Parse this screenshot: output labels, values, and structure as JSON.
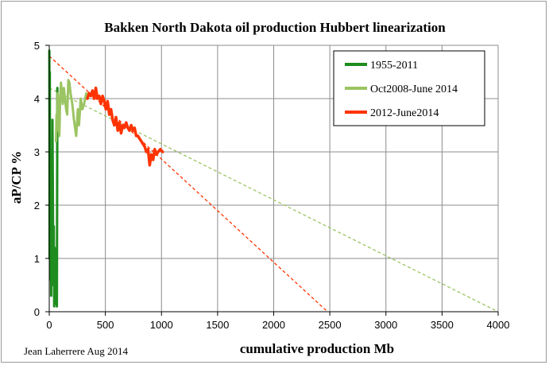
{
  "chart_data": {
    "type": "line",
    "title": "Bakken North Dakota oil production Hubbert linearization",
    "xlabel": "cumulative production Mb",
    "ylabel": "aP/CP %",
    "credit": "Jean Laherrere Aug 2014",
    "xlim": [
      0,
      4000
    ],
    "ylim": [
      0,
      5
    ],
    "x_ticks": [
      0,
      500,
      1000,
      1500,
      2000,
      2500,
      3000,
      3500,
      4000
    ],
    "y_ticks": [
      0,
      1,
      2,
      3,
      4,
      5
    ],
    "grid": true,
    "legend_position": "top-right",
    "series": [
      {
        "name": "1955-2011",
        "color": "#1e8c1e",
        "points": [
          [
            1,
            4.9
          ],
          [
            2,
            3.0
          ],
          [
            3,
            1.0
          ],
          [
            4,
            3.8
          ],
          [
            5,
            4.5
          ],
          [
            7,
            1.2
          ],
          [
            9,
            2.6
          ],
          [
            11,
            0.6
          ],
          [
            14,
            1.8
          ],
          [
            17,
            0.3
          ],
          [
            20,
            1.5
          ],
          [
            24,
            0.8
          ],
          [
            28,
            3.6
          ],
          [
            32,
            2.4
          ],
          [
            36,
            0.5
          ],
          [
            40,
            1.6
          ],
          [
            44,
            0.1
          ],
          [
            48,
            1.2
          ],
          [
            52,
            0.3
          ],
          [
            56,
            1.0
          ],
          [
            60,
            0.15
          ],
          [
            64,
            0.7
          ],
          [
            68,
            0.1
          ],
          [
            72,
            4.2
          ]
        ]
      },
      {
        "name": "Oct2008-June 2014",
        "color": "#9bc462",
        "points": [
          [
            60,
            3.2
          ],
          [
            65,
            3.7
          ],
          [
            70,
            3.4
          ],
          [
            75,
            4.1
          ],
          [
            80,
            3.5
          ],
          [
            85,
            3.8
          ],
          [
            90,
            3.3
          ],
          [
            97,
            4.0
          ],
          [
            105,
            4.3
          ],
          [
            112,
            4.1
          ],
          [
            120,
            3.9
          ],
          [
            130,
            4.2
          ],
          [
            140,
            4.0
          ],
          [
            150,
            3.8
          ],
          [
            160,
            3.7
          ],
          [
            170,
            4.35
          ],
          [
            180,
            4.3
          ],
          [
            190,
            4.1
          ],
          [
            205,
            3.9
          ],
          [
            220,
            3.6
          ],
          [
            240,
            3.3
          ],
          [
            255,
            3.8
          ],
          [
            265,
            3.5
          ],
          [
            280,
            4.0
          ],
          [
            295,
            3.8
          ],
          [
            310,
            3.9
          ],
          [
            330,
            4.1
          ],
          [
            340,
            4.0
          ]
        ]
      },
      {
        "name": "2012-June2014",
        "color": "#ff3300",
        "points": [
          [
            340,
            4.0
          ],
          [
            355,
            4.1
          ],
          [
            370,
            4.05
          ],
          [
            385,
            4.15
          ],
          [
            400,
            4.0
          ],
          [
            415,
            4.2
          ],
          [
            430,
            4.0
          ],
          [
            445,
            4.05
          ],
          [
            460,
            3.9
          ],
          [
            475,
            4.05
          ],
          [
            490,
            3.95
          ],
          [
            505,
            3.8
          ],
          [
            520,
            3.95
          ],
          [
            535,
            3.7
          ],
          [
            550,
            3.8
          ],
          [
            565,
            3.6
          ],
          [
            580,
            3.5
          ],
          [
            595,
            3.65
          ],
          [
            610,
            3.4
          ],
          [
            625,
            3.55
          ],
          [
            640,
            3.35
          ],
          [
            655,
            3.5
          ],
          [
            670,
            3.45
          ],
          [
            685,
            3.55
          ],
          [
            700,
            3.45
          ],
          [
            715,
            3.4
          ],
          [
            730,
            3.5
          ],
          [
            745,
            3.4
          ],
          [
            760,
            3.45
          ],
          [
            775,
            3.3
          ],
          [
            790,
            3.3
          ],
          [
            805,
            3.25
          ],
          [
            820,
            3.2
          ],
          [
            835,
            3.15
          ],
          [
            850,
            3.1
          ],
          [
            865,
            3.0
          ],
          [
            880,
            3.05
          ],
          [
            895,
            2.75
          ],
          [
            910,
            2.95
          ],
          [
            925,
            2.85
          ],
          [
            940,
            3.05
          ],
          [
            955,
            2.95
          ],
          [
            970,
            3.0
          ],
          [
            990,
            3.05
          ],
          [
            1010,
            3.0
          ]
        ]
      }
    ],
    "trendlines": [
      {
        "color": "#9bc462",
        "x": [
          0,
          4000
        ],
        "y": [
          4.2,
          0
        ]
      },
      {
        "color": "#ff3300",
        "x": [
          0,
          2480
        ],
        "y": [
          4.8,
          0
        ]
      }
    ]
  }
}
